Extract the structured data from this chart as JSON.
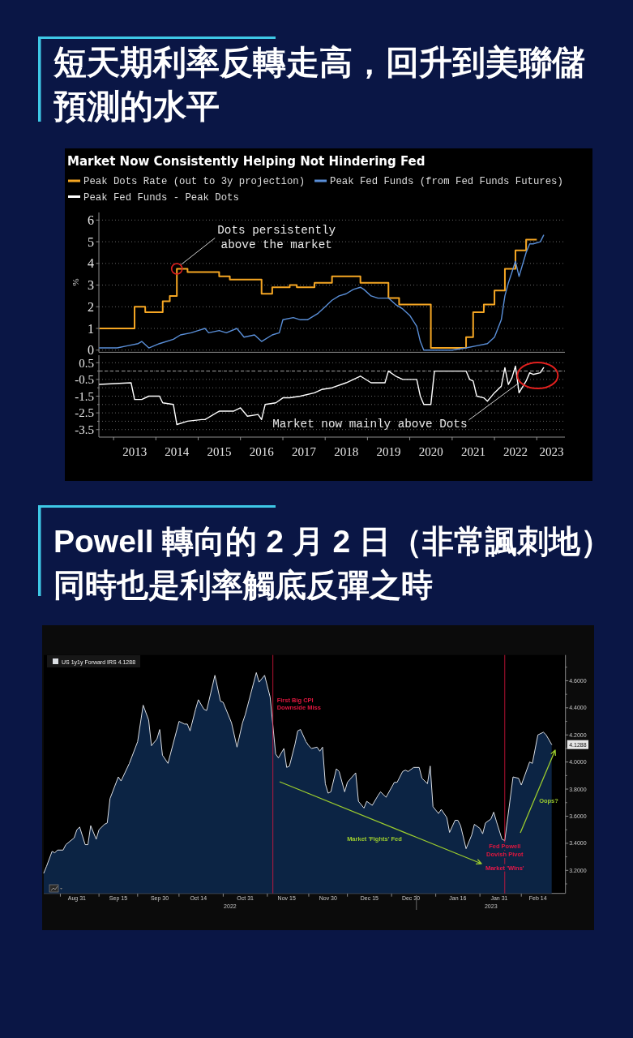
{
  "chart_data": [
    {
      "type": "line",
      "title": "短天期利率反轉走高，回升到美聯儲預測的水平",
      "subtitle": "Market Now Consistently Helping Not Hindering Fed",
      "ylabel": "%",
      "xlim": [
        "2012-08-27",
        "2023-09-01"
      ],
      "ylim": [
        -0.1,
        6.35
      ],
      "yticks": [
        0,
        1,
        2,
        3,
        4,
        5,
        6
      ],
      "tick_labels": "y",
      "grid": "y",
      "legend": "top",
      "series": [
        {
          "name": "Peak Dots Rate (out to 3y projection)",
          "type": "step",
          "color": "#f5a623",
          "x": [
            "2012-09",
            "2013-07",
            "2013-10",
            "2014-03",
            "2014-05",
            "2014-07",
            "2014-10",
            "2015-07",
            "2015-10",
            "2016-07",
            "2016-10",
            "2017-03",
            "2017-05",
            "2017-10",
            "2018-03",
            "2018-11",
            "2019-07",
            "2019-10",
            "2020-07",
            "2021-05",
            "2021-07",
            "2021-10",
            "2022-01",
            "2022-04",
            "2022-07",
            "2022-10",
            "2023-01"
          ],
          "values": [
            1.0,
            2.0,
            1.75,
            2.25,
            2.5,
            3.75,
            3.6,
            3.4,
            3.25,
            2.6,
            2.9,
            3.0,
            2.9,
            3.1,
            3.4,
            3.1,
            2.4,
            2.1,
            0.1,
            0.6,
            1.75,
            2.1,
            2.75,
            3.75,
            4.6,
            5.1,
            5.1
          ]
        },
        {
          "name": "Peak Fed Funds (from Fed Funds Futures)",
          "color": "#5a8fd8",
          "x": [
            "2012-09",
            "2013-02",
            "2013-05",
            "2013-08",
            "2013-09",
            "2013-11",
            "2014-02",
            "2014-06",
            "2014-08",
            "2014-11",
            "2015-01",
            "2015-03",
            "2015-04",
            "2015-07",
            "2015-09",
            "2015-12",
            "2016-02",
            "2016-05",
            "2016-07",
            "2016-10",
            "2016-12",
            "2017-01",
            "2017-04",
            "2017-06",
            "2017-08",
            "2017-11",
            "2018-01",
            "2018-03",
            "2018-05",
            "2018-07",
            "2018-09",
            "2018-11",
            "2018-12",
            "2019-02",
            "2019-04",
            "2019-07",
            "2019-09",
            "2019-11",
            "2020-01",
            "2020-03",
            "2020-04",
            "2020-05",
            "2020-07",
            "2021-01",
            "2021-05",
            "2021-08",
            "2021-11",
            "2022-01",
            "2022-03",
            "2022-04",
            "2022-05",
            "2022-06",
            "2022-07",
            "2022-08",
            "2022-10",
            "2022-11",
            "2022-12",
            "2023-02",
            "2023-03"
          ],
          "values": [
            0.1,
            0.1,
            0.2,
            0.3,
            0.4,
            0.1,
            0.3,
            0.5,
            0.7,
            0.8,
            0.9,
            1.0,
            0.8,
            0.9,
            0.8,
            1.0,
            0.6,
            0.7,
            0.4,
            0.7,
            0.8,
            1.4,
            1.5,
            1.4,
            1.4,
            1.7,
            2.0,
            2.3,
            2.5,
            2.6,
            2.8,
            2.9,
            2.8,
            2.5,
            2.4,
            2.4,
            2.1,
            1.9,
            1.6,
            1.1,
            0.4,
            0.0,
            0.0,
            0.0,
            0.1,
            0.2,
            0.3,
            0.6,
            1.4,
            2.5,
            3.1,
            3.6,
            4.1,
            3.4,
            4.5,
            4.9,
            4.9,
            5.0,
            5.3
          ]
        }
      ],
      "annotations": [
        {
          "text": "Dots persistently above the market",
          "x": "2014-07",
          "y": 3.75
        }
      ]
    },
    {
      "type": "line",
      "xlim": [
        "2012-08-27",
        "2023-09-01"
      ],
      "xticks": [
        {
          "value": "2013-01-01",
          "label": null
        },
        {
          "value": "2013-07-02",
          "label": "2013"
        },
        {
          "value": "2014-01-01",
          "label": null
        },
        {
          "value": "2014-07-02",
          "label": "2014"
        },
        {
          "value": "2015-01-01",
          "label": null
        },
        {
          "value": "2015-07-02",
          "label": "2015"
        },
        {
          "value": "2016-01-01",
          "label": null
        },
        {
          "value": "2016-07-02",
          "label": "2016"
        },
        {
          "value": "2017-01-01",
          "label": null
        },
        {
          "value": "2017-07-02",
          "label": "2017"
        },
        {
          "value": "2018-01-01",
          "label": null
        },
        {
          "value": "2018-07-02",
          "label": "2018"
        },
        {
          "value": "2019-01-01",
          "label": null
        },
        {
          "value": "2019-07-02",
          "label": "2019"
        },
        {
          "value": "2020-01-01",
          "label": null
        },
        {
          "value": "2020-07-02",
          "label": "2020"
        },
        {
          "value": "2021-01-01",
          "label": null
        },
        {
          "value": "2021-07-02",
          "label": "2021"
        },
        {
          "value": "2022-01-01",
          "label": null
        },
        {
          "value": "2022-07-02",
          "label": "2022"
        },
        {
          "value": "2023-01-01",
          "label": null
        },
        {
          "value": "2023-05-08",
          "label": "2023"
        }
      ],
      "ylim": [
        -3.95,
        0.95
      ],
      "yticks": [
        0.5,
        {
          "value": 0,
          "label": null
        },
        -0.5,
        {
          "value": -1,
          "label": null
        },
        -1.5,
        {
          "value": -2,
          "label": null
        },
        -2.5,
        {
          "value": -3,
          "label": null
        },
        -3.5
      ],
      "grid": "y",
      "legend": "top",
      "ref_lines": [
        {
          "axis": "y",
          "value": 0,
          "line_style": "dashed",
          "color": "#a0a0a0"
        }
      ],
      "series": [
        {
          "name": "Peak Fed Funds - Peak Dots",
          "color": "#ffffff",
          "x": [
            "2012-09",
            "2013-06",
            "2013-07",
            "2013-09",
            "2013-11",
            "2014-02",
            "2014-03",
            "2014-06",
            "2014-07",
            "2014-10",
            "2015-02",
            "2015-03",
            "2015-07",
            "2015-11",
            "2016-01",
            "2016-03",
            "2016-06",
            "2016-07",
            "2016-08",
            "2016-11",
            "2017-01",
            "2017-03",
            "2017-06",
            "2017-10",
            "2017-12",
            "2018-03",
            "2018-07",
            "2018-11",
            "2019-02",
            "2019-06",
            "2019-07",
            "2019-09",
            "2019-11",
            "2020-03",
            "2020-04",
            "2020-05",
            "2020-07",
            "2020-08",
            "2021-05",
            "2021-06",
            "2021-07",
            "2021-08",
            "2021-10",
            "2021-11",
            "2022-01",
            "2022-03",
            "2022-04",
            "2022-05",
            "2022-06",
            "2022-07",
            "2022-08",
            "2022-10",
            "2022-11",
            "2022-12",
            "2023-02",
            "2023-03"
          ],
          "values": [
            -0.8,
            -0.7,
            -1.7,
            -1.7,
            -1.5,
            -1.5,
            -1.9,
            -2.0,
            -3.2,
            -3.0,
            -2.9,
            -2.9,
            -2.4,
            -2.4,
            -2.2,
            -2.7,
            -2.6,
            -2.9,
            -2.0,
            -1.9,
            -1.6,
            -1.6,
            -1.5,
            -1.3,
            -1.1,
            -1.0,
            -0.7,
            -0.3,
            -0.7,
            -0.7,
            0.0,
            -0.3,
            -0.5,
            -0.5,
            -1.5,
            -2.0,
            -2.0,
            0.0,
            0.0,
            -0.5,
            -0.6,
            -1.5,
            -1.6,
            -1.8,
            -1.3,
            -0.9,
            0.2,
            -0.8,
            -0.4,
            0.3,
            -1.3,
            -0.6,
            -0.1,
            -0.2,
            -0.1,
            0.2
          ]
        }
      ],
      "annotations": [
        {
          "text": "Market now mainly above Dots",
          "x": "2022-08",
          "y": -0.7
        }
      ]
    },
    {
      "type": "area",
      "title": "Powell 轉向的 2 月 2 日（非常諷刺地）同時也是利率觸底反彈之時",
      "xlim": [
        "2022-08-19",
        "2023-02-24"
      ],
      "xticks": [
        {
          "value": "2022-08-25",
          "label": null
        },
        {
          "value": "2022-08-31",
          "label": "Aug 31"
        },
        {
          "value": "2022-09-08",
          "label": null
        },
        {
          "value": "2022-09-15",
          "label": "Sep 15"
        },
        {
          "value": "2022-09-22",
          "label": null
        },
        {
          "value": "2022-09-30",
          "label": "Sep 30"
        },
        {
          "value": "2022-10-07",
          "label": null
        },
        {
          "value": "2022-10-14",
          "label": "Oct 14"
        },
        {
          "value": "2022-10-23",
          "label": null
        },
        {
          "value": "2022-10-31",
          "label": "Oct 31"
        },
        {
          "value": "2022-11-08",
          "label": null
        },
        {
          "value": "2022-11-15",
          "label": "Nov 15"
        },
        {
          "value": "2022-11-23",
          "label": null
        },
        {
          "value": "2022-11-30",
          "label": "Nov 30"
        },
        {
          "value": "2022-12-07",
          "label": null
        },
        {
          "value": "2022-12-15",
          "label": "Dec 15"
        },
        {
          "value": "2022-12-23",
          "label": null
        },
        {
          "value": "2022-12-30",
          "label": "Dec 30"
        },
        {
          "value": "2023-01-08",
          "label": null
        },
        {
          "value": "2023-01-16",
          "label": "Jan 16"
        },
        {
          "value": "2023-01-24",
          "label": null
        },
        {
          "value": "2023-01-31",
          "label": "Jan 31"
        },
        {
          "value": "2023-02-08",
          "label": null
        },
        {
          "value": "2023-02-14",
          "label": "Feb 14"
        }
      ],
      "ylim": [
        3.03,
        4.79
      ],
      "yticks": [
        {
          "value": 3.1,
          "label": null
        },
        {
          "value": 3.2,
          "label": "3.2000"
        },
        {
          "value": 3.3,
          "label": null
        },
        {
          "value": 3.4,
          "label": "3.4000"
        },
        {
          "value": 3.5,
          "label": null
        },
        {
          "value": 3.6,
          "label": "3.6000"
        },
        {
          "value": 3.7,
          "label": null
        },
        {
          "value": 3.8,
          "label": "3.8000"
        },
        {
          "value": 3.9,
          "label": null
        },
        {
          "value": 4.0,
          "label": "4.0000"
        },
        {
          "value": 4.1,
          "label": null
        },
        {
          "value": 4.2,
          "label": "4.2000"
        },
        {
          "value": 4.3,
          "label": null
        },
        {
          "value": 4.4,
          "label": "4.4000"
        },
        {
          "value": 4.5,
          "label": null
        },
        {
          "value": 4.6,
          "label": "4.6000"
        },
        {
          "value": 4.7,
          "label": null
        }
      ],
      "legend": "top left",
      "series": [
        {
          "name": "US 1y1y Forward IRS 4.1288",
          "color": "#0c2444",
          "x": [
            "2022-08-19",
            "2022-08-20",
            "2022-08-22",
            "2022-08-23",
            "2022-08-24",
            "2022-08-26",
            "2022-08-27",
            "2022-08-30",
            "2022-08-31",
            "2022-09-01",
            "2022-09-03",
            "2022-09-04",
            "2022-09-05",
            "2022-09-07",
            "2022-09-08",
            "2022-09-10",
            "2022-09-11",
            "2022-09-12",
            "2022-09-15",
            "2022-09-16",
            "2022-09-19",
            "2022-09-22",
            "2022-09-24",
            "2022-09-26",
            "2022-09-27",
            "2022-09-29",
            "2022-09-30",
            "2022-10-01",
            "2022-10-03",
            "2022-10-07",
            "2022-10-09",
            "2022-10-10",
            "2022-10-11",
            "2022-10-13",
            "2022-10-14",
            "2022-10-16",
            "2022-10-17",
            "2022-10-20",
            "2022-10-22",
            "2022-10-23",
            "2022-10-26",
            "2022-10-28",
            "2022-10-30",
            "2022-10-31",
            "2022-11-04",
            "2022-11-05",
            "2022-11-07",
            "2022-11-09",
            "2022-11-11",
            "2022-11-12",
            "2022-11-14",
            "2022-11-15",
            "2022-11-16",
            "2022-11-18",
            "2022-11-19",
            "2022-11-20",
            "2022-11-22",
            "2022-11-23",
            "2022-11-24",
            "2022-11-26",
            "2022-11-27",
            "2022-11-28",
            "2022-11-29",
            "2022-11-30",
            "2022-12-01",
            "2022-12-03",
            "2022-12-04",
            "2022-12-06",
            "2022-12-07",
            "2022-12-10",
            "2022-12-11",
            "2022-12-13",
            "2022-12-14",
            "2022-12-16",
            "2022-12-18",
            "2022-12-19",
            "2022-12-21",
            "2022-12-24",
            "2022-12-25",
            "2022-12-27",
            "2022-12-28",
            "2022-12-29",
            "2022-12-31",
            "2023-01-02",
            "2023-01-03",
            "2023-01-05",
            "2023-01-06",
            "2023-01-07",
            "2023-01-09",
            "2023-01-10",
            "2023-01-12",
            "2023-01-13",
            "2023-01-15",
            "2023-01-16",
            "2023-01-17",
            "2023-01-19",
            "2023-01-21",
            "2023-01-22",
            "2023-01-24",
            "2023-01-25",
            "2023-01-26",
            "2023-01-28",
            "2023-01-29",
            "2023-01-30",
            "2023-02-01",
            "2023-02-02",
            "2023-02-05",
            "2023-02-07",
            "2023-02-08",
            "2023-02-11",
            "2023-02-12",
            "2023-02-14",
            "2023-02-16",
            "2023-02-17",
            "2023-02-19"
          ],
          "values": [
            3.18,
            3.23,
            3.34,
            3.33,
            3.35,
            3.35,
            3.39,
            3.44,
            3.5,
            3.52,
            3.39,
            3.39,
            3.53,
            3.43,
            3.5,
            3.54,
            3.55,
            3.73,
            3.89,
            3.86,
            3.99,
            4.15,
            4.42,
            4.31,
            4.12,
            4.17,
            4.24,
            4.05,
            3.99,
            4.3,
            4.28,
            4.28,
            4.23,
            4.39,
            4.46,
            4.39,
            4.38,
            4.64,
            4.45,
            4.44,
            4.29,
            4.11,
            4.29,
            4.35,
            4.66,
            4.59,
            4.64,
            4.48,
            4.06,
            4.03,
            4.1,
            3.96,
            3.97,
            4.13,
            4.23,
            4.24,
            4.15,
            4.12,
            4.1,
            4.11,
            4.08,
            4.11,
            3.84,
            3.77,
            3.78,
            3.95,
            3.93,
            3.78,
            3.85,
            3.92,
            3.71,
            3.66,
            3.71,
            3.68,
            3.75,
            3.78,
            3.74,
            3.85,
            3.85,
            3.93,
            3.94,
            3.93,
            3.96,
            3.96,
            3.88,
            3.84,
            3.97,
            3.67,
            3.62,
            3.65,
            3.59,
            3.48,
            3.57,
            3.57,
            3.53,
            3.36,
            3.46,
            3.54,
            3.51,
            3.47,
            3.55,
            3.58,
            3.63,
            3.56,
            3.43,
            3.42,
            3.89,
            3.88,
            3.83,
            4.0,
            3.99,
            4.2,
            4.22,
            4.2,
            4.1288
          ]
        }
      ],
      "ref_lines": [
        {
          "axis": "x",
          "value": "2022-11-10",
          "label": "First Big CPI Downside Miss",
          "color": "#e0173f"
        },
        {
          "axis": "x",
          "value": "2023-02-02",
          "label": "Fed Powell Dovish Pivot",
          "color": "#e0173f"
        }
      ],
      "annotations": [
        "Market 'Fights' Fed",
        {
          "text": "Market 'Wins'",
          "x": "2023-02-02",
          "y": 3.22
        },
        "Oops?",
        "2022",
        "2023",
        "4.1288"
      ]
    }
  ]
}
